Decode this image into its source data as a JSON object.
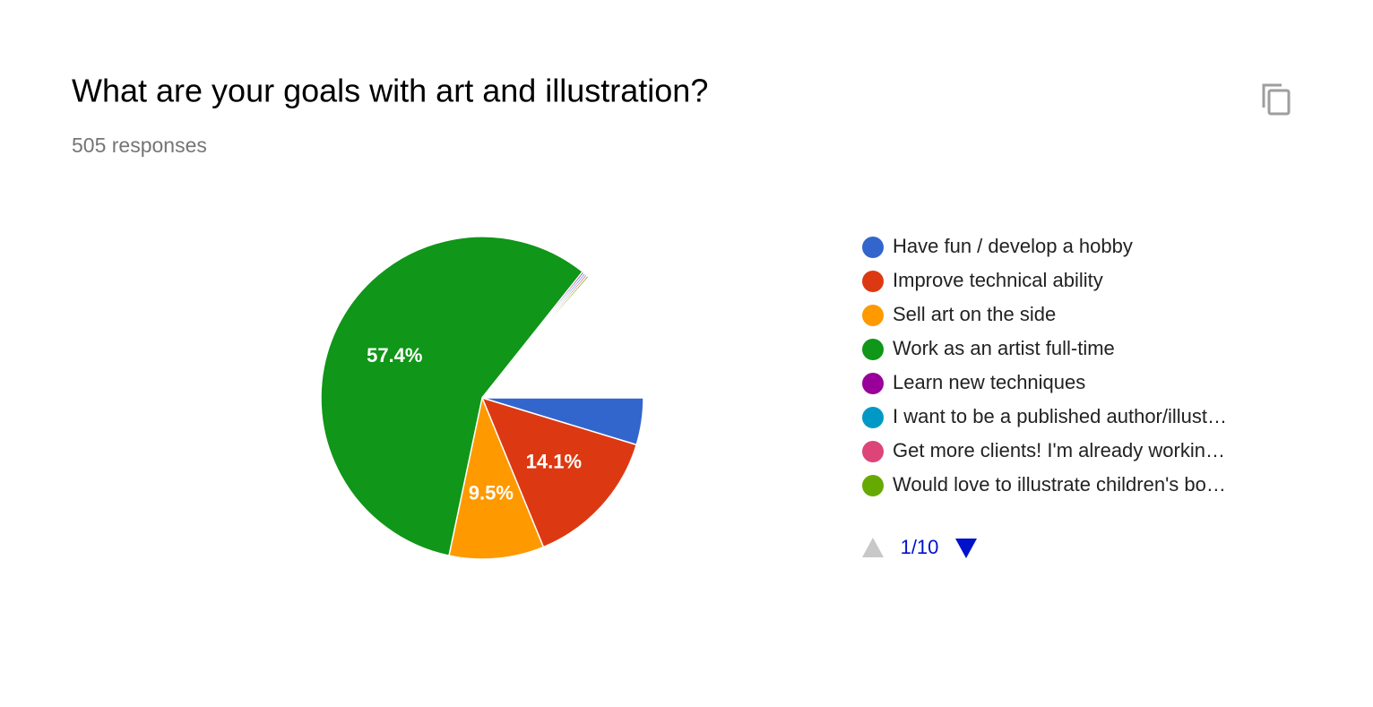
{
  "chart_data": {
    "type": "pie",
    "title": "What are your goals with art and illustration?",
    "subtitle": "505 responses",
    "categories": [
      "Have fun / develop a hobby",
      "Improve technical ability",
      "Sell art on the side",
      "Work as an artist full-time",
      "Learn new techniques",
      "I want to be a published author/illust…",
      "Get more clients! I'm already workin…",
      "Would love to illustrate children's bo…"
    ],
    "values": [
      4.7,
      14.1,
      9.5,
      57.4,
      0.2,
      0.2,
      0.2,
      0.2
    ],
    "value_labels": [
      null,
      "14.1%",
      "9.5%",
      "57.4%",
      null,
      null,
      null,
      null
    ],
    "colors": [
      "#3366cc",
      "#dc3912",
      "#ff9900",
      "#109618",
      "#990099",
      "#0099c6",
      "#dd4477",
      "#66aa00"
    ],
    "legend_page": "1/10"
  }
}
